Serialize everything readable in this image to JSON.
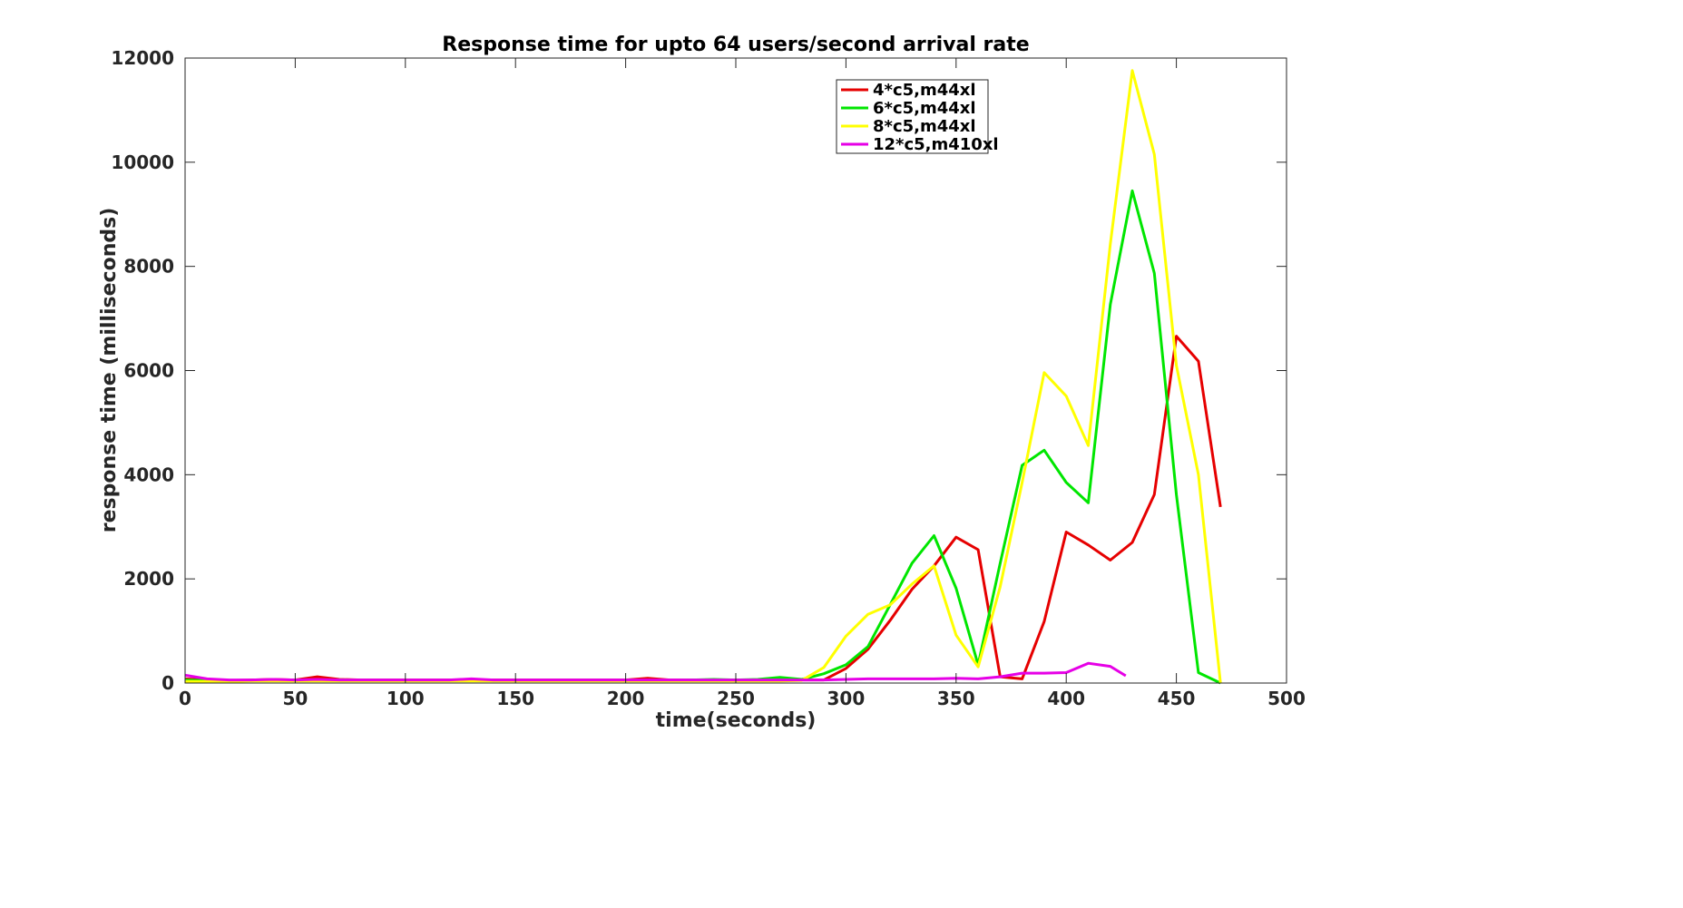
{
  "chart_data": {
    "type": "line",
    "title": "Response time for upto 64 users/second arrival rate",
    "xlabel": "time(seconds)",
    "ylabel": "response time (milliseconds)",
    "xlim": [
      0,
      500
    ],
    "ylim": [
      0,
      12000
    ],
    "xticks": [
      0,
      50,
      100,
      150,
      200,
      250,
      300,
      350,
      400,
      450,
      500
    ],
    "yticks": [
      0,
      2000,
      4000,
      6000,
      8000,
      10000,
      12000
    ],
    "grid": false,
    "legend_position": "top-center",
    "series": [
      {
        "name": "4*c5,m44xl",
        "color": "#e60000",
        "x": [
          0,
          10,
          20,
          30,
          40,
          50,
          60,
          70,
          80,
          90,
          100,
          110,
          120,
          130,
          140,
          150,
          160,
          170,
          180,
          190,
          200,
          210,
          220,
          230,
          240,
          250,
          260,
          270,
          280,
          290,
          300,
          310,
          320,
          330,
          340,
          350,
          360,
          370,
          380,
          390,
          400,
          410,
          420,
          430,
          440,
          450,
          460,
          470
        ],
        "y": [
          80,
          60,
          50,
          60,
          70,
          60,
          120,
          70,
          60,
          60,
          60,
          60,
          60,
          60,
          60,
          60,
          60,
          60,
          60,
          60,
          60,
          90,
          60,
          60,
          60,
          60,
          60,
          60,
          60,
          60,
          280,
          650,
          1200,
          1800,
          2250,
          2800,
          2560,
          120,
          80,
          1180,
          2900,
          2650,
          2360,
          2700,
          3620,
          6660,
          6180,
          3380
        ]
      },
      {
        "name": "6*c5,m44xl",
        "color": "#00e600",
        "x": [
          0,
          10,
          20,
          30,
          40,
          50,
          60,
          70,
          80,
          90,
          100,
          110,
          120,
          130,
          140,
          150,
          160,
          170,
          180,
          190,
          200,
          210,
          220,
          230,
          240,
          250,
          260,
          270,
          280,
          290,
          300,
          310,
          320,
          330,
          340,
          350,
          360,
          370,
          380,
          390,
          400,
          410,
          420,
          430,
          440,
          450,
          460,
          470
        ],
        "y": [
          60,
          50,
          50,
          50,
          60,
          50,
          60,
          60,
          50,
          50,
          50,
          50,
          50,
          50,
          50,
          50,
          50,
          50,
          50,
          50,
          50,
          50,
          50,
          60,
          70,
          60,
          70,
          110,
          70,
          180,
          350,
          700,
          1500,
          2300,
          2830,
          1820,
          350,
          2300,
          4180,
          4470,
          3850,
          3460,
          7270,
          9450,
          7870,
          3620,
          200,
          0
        ]
      },
      {
        "name": "8*c5,m44xl",
        "color": "#ffff00",
        "x": [
          0,
          10,
          20,
          30,
          40,
          50,
          60,
          70,
          80,
          90,
          100,
          110,
          120,
          130,
          140,
          150,
          160,
          170,
          180,
          190,
          200,
          210,
          220,
          230,
          240,
          250,
          260,
          270,
          280,
          290,
          300,
          310,
          320,
          330,
          340,
          350,
          360,
          370,
          380,
          390,
          400,
          410,
          420,
          430,
          440,
          450,
          460,
          470
        ],
        "y": [
          30,
          30,
          30,
          40,
          40,
          40,
          40,
          40,
          40,
          40,
          40,
          40,
          40,
          40,
          40,
          40,
          40,
          40,
          40,
          40,
          40,
          40,
          40,
          40,
          40,
          40,
          40,
          40,
          50,
          300,
          900,
          1320,
          1500,
          1900,
          2250,
          920,
          310,
          1850,
          3850,
          5960,
          5510,
          4560,
          8430,
          11760,
          10150,
          6100,
          4000,
          0
        ]
      },
      {
        "name": "12*c5,m410xl",
        "color": "#e600e6",
        "x": [
          0,
          10,
          20,
          30,
          40,
          50,
          60,
          70,
          80,
          90,
          100,
          110,
          120,
          130,
          140,
          150,
          160,
          170,
          180,
          190,
          200,
          210,
          220,
          230,
          240,
          250,
          260,
          270,
          280,
          290,
          300,
          310,
          320,
          330,
          340,
          350,
          360,
          370,
          380,
          390,
          400,
          410,
          420,
          427
        ],
        "y": [
          150,
          80,
          60,
          60,
          70,
          60,
          70,
          60,
          60,
          60,
          60,
          60,
          60,
          80,
          60,
          60,
          60,
          60,
          60,
          60,
          60,
          60,
          60,
          60,
          60,
          60,
          60,
          60,
          60,
          60,
          70,
          80,
          80,
          80,
          80,
          90,
          80,
          120,
          190,
          190,
          200,
          380,
          320,
          140
        ]
      }
    ]
  }
}
